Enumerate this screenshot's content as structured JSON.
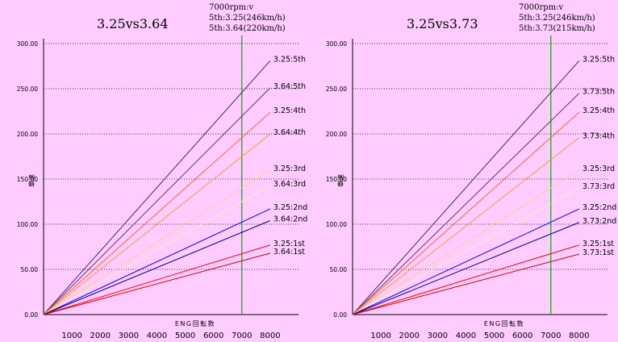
{
  "chart_data": [
    {
      "type": "line",
      "title": "3.25vs3.64",
      "annotation": [
        "7000rpm:v",
        "5th:3.25(246km/h)",
        "5th:3.64(220km/h)"
      ],
      "xlabel": "ENG回転数",
      "ylabel": "車速",
      "x_ticks": [
        "1000",
        "2000",
        "3000",
        "4000",
        "5000",
        "6000",
        "7000",
        "8000"
      ],
      "y_ticks": [
        "0.00",
        "50.00",
        "100.00",
        "150.00",
        "200.00",
        "250.00",
        "300.00"
      ],
      "xlim": [
        0,
        9000
      ],
      "ylim": [
        0,
        300
      ],
      "marker_rpm": 7000,
      "series": [
        {
          "name": "3.25:5th",
          "color": "#333366",
          "dash": false,
          "x": [
            0,
            8000
          ],
          "y": [
            0,
            281
          ]
        },
        {
          "name": "3.64:5th",
          "color": "#663366",
          "dash": false,
          "x": [
            0,
            8000
          ],
          "y": [
            0,
            251
          ]
        },
        {
          "name": "3.25:4th",
          "color": "#ff6633",
          "dash": false,
          "x": [
            0,
            8000
          ],
          "y": [
            0,
            224
          ]
        },
        {
          "name": "3.64:4th",
          "color": "#ff9933",
          "dash": false,
          "x": [
            0,
            8000
          ],
          "y": [
            0,
            200
          ]
        },
        {
          "name": "3.25:3rd",
          "color": "#ffcc66",
          "dash": true,
          "x": [
            0,
            8000
          ],
          "y": [
            0,
            160
          ]
        },
        {
          "name": "3.64:3rd",
          "color": "#ffff99",
          "dash": true,
          "x": [
            0,
            8000
          ],
          "y": [
            0,
            143
          ]
        },
        {
          "name": "3.25:2nd",
          "color": "#0000ff",
          "dash": false,
          "x": [
            0,
            8000
          ],
          "y": [
            0,
            117
          ]
        },
        {
          "name": "3.64:2nd",
          "color": "#000099",
          "dash": false,
          "x": [
            0,
            8000
          ],
          "y": [
            0,
            104
          ]
        },
        {
          "name": "3.25:1st",
          "color": "#ff0000",
          "dash": false,
          "x": [
            0,
            8000
          ],
          "y": [
            0,
            77
          ]
        },
        {
          "name": "3.64:1st",
          "color": "#cc0000",
          "dash": false,
          "x": [
            0,
            8000
          ],
          "y": [
            0,
            68
          ]
        }
      ]
    },
    {
      "type": "line",
      "title": "3.25vs3.73",
      "annotation": [
        "7000rpm:v",
        "5th:3.25(246km/h)",
        "5th:3.73(215km/h)"
      ],
      "xlabel": "ENG回転数",
      "ylabel": "車速",
      "x_ticks": [
        "1000",
        "2000",
        "3000",
        "4000",
        "5000",
        "6000",
        "7000",
        "8000"
      ],
      "y_ticks": [
        "0.00",
        "50.00",
        "100.00",
        "150.00",
        "200.00",
        "250.00",
        "300.00"
      ],
      "xlim": [
        0,
        9000
      ],
      "ylim": [
        0,
        300
      ],
      "marker_rpm": 7000,
      "series": [
        {
          "name": "3.25:5th",
          "color": "#333366",
          "dash": false,
          "x": [
            0,
            8000
          ],
          "y": [
            0,
            281
          ]
        },
        {
          "name": "3.73:5th",
          "color": "#663366",
          "dash": false,
          "x": [
            0,
            8000
          ],
          "y": [
            0,
            245
          ]
        },
        {
          "name": "3.25:4th",
          "color": "#ff6633",
          "dash": false,
          "x": [
            0,
            8000
          ],
          "y": [
            0,
            224
          ]
        },
        {
          "name": "3.73:4th",
          "color": "#ff9933",
          "dash": false,
          "x": [
            0,
            8000
          ],
          "y": [
            0,
            196
          ]
        },
        {
          "name": "3.25:3rd",
          "color": "#ffcc66",
          "dash": true,
          "x": [
            0,
            8000
          ],
          "y": [
            0,
            160
          ]
        },
        {
          "name": "3.73:3rd",
          "color": "#ffff99",
          "dash": true,
          "x": [
            0,
            8000
          ],
          "y": [
            0,
            140
          ]
        },
        {
          "name": "3.25:2nd",
          "color": "#0000ff",
          "dash": false,
          "x": [
            0,
            8000
          ],
          "y": [
            0,
            117
          ]
        },
        {
          "name": "3.73:2nd",
          "color": "#000099",
          "dash": false,
          "x": [
            0,
            8000
          ],
          "y": [
            0,
            102
          ]
        },
        {
          "name": "3.25:1st",
          "color": "#ff0000",
          "dash": false,
          "x": [
            0,
            8000
          ],
          "y": [
            0,
            77
          ]
        },
        {
          "name": "3.73:1st",
          "color": "#cc0000",
          "dash": false,
          "x": [
            0,
            8000
          ],
          "y": [
            0,
            67
          ]
        }
      ]
    }
  ]
}
